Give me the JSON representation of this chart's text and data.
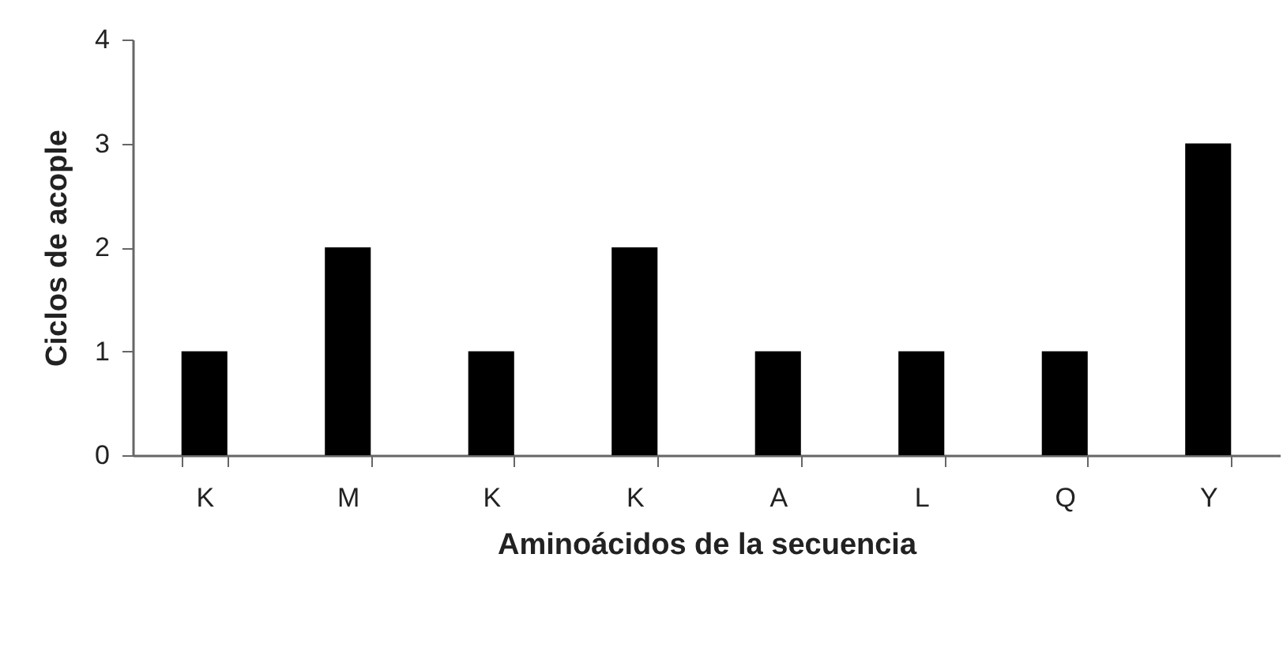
{
  "chart_data": {
    "type": "bar",
    "xlabel": "Aminoácidos de la secuencia",
    "ylabel": "Ciclos de acople",
    "categories": [
      "K",
      "M",
      "K",
      "K",
      "A",
      "L",
      "Q",
      "Y"
    ],
    "values": [
      1,
      2,
      1,
      2,
      1,
      1,
      1,
      3
    ],
    "color": "#000000",
    "ylim": [
      0,
      4
    ],
    "yticks": [
      0,
      1,
      2,
      3,
      4
    ],
    "grid": false
  }
}
